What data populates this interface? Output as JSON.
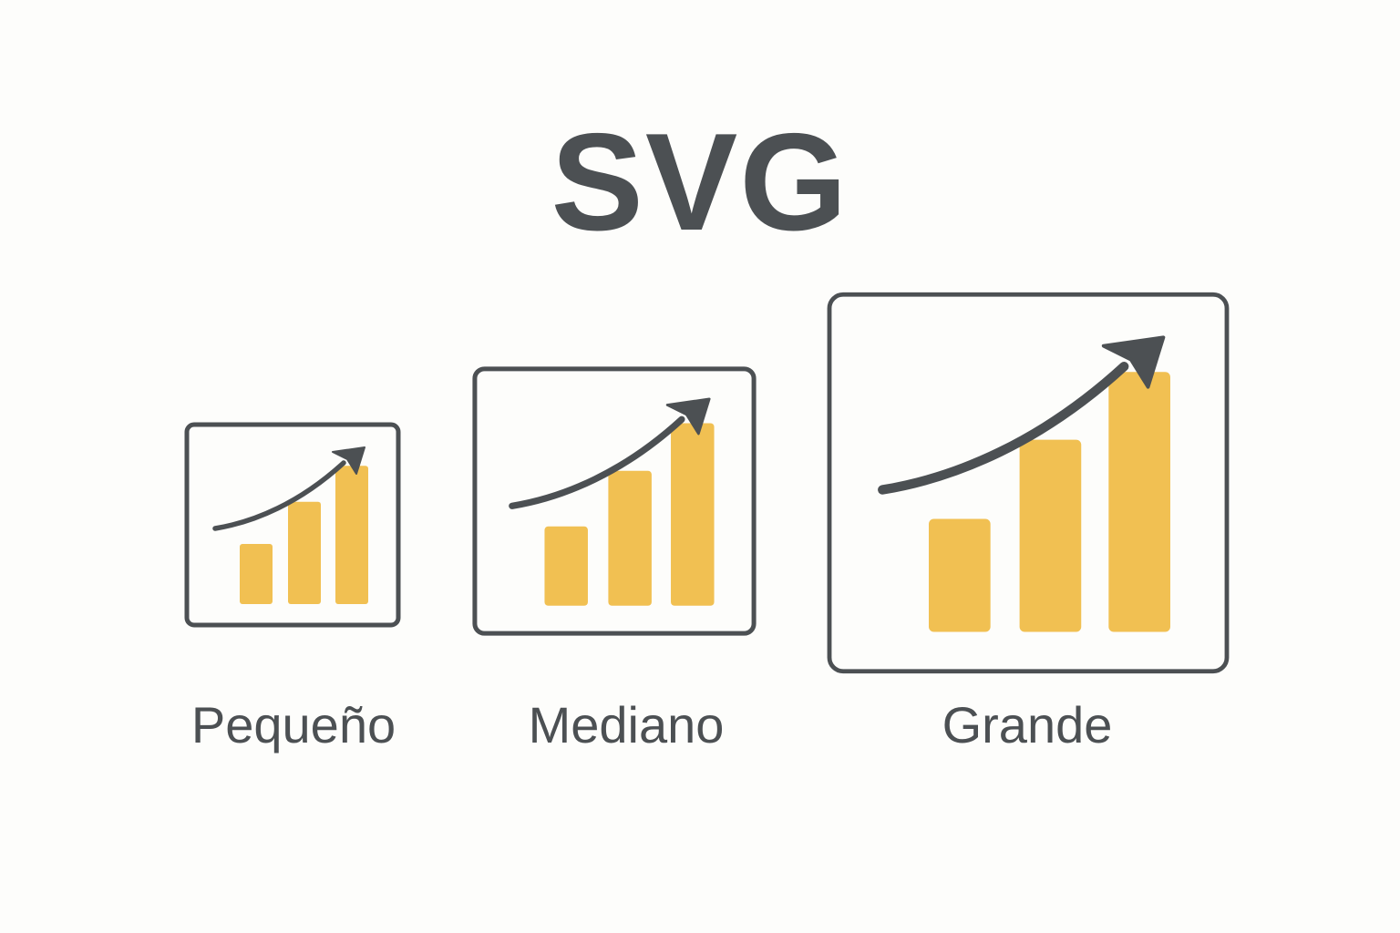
{
  "title": "SVG",
  "colors": {
    "stroke": "#4c5053",
    "bar": "#f1c052",
    "background": "#fdfdfb"
  },
  "icons": [
    {
      "label": "Pequeño",
      "icon": "bar-chart-trend-up-icon",
      "bar_levels": [
        1,
        1.7,
        2.3
      ]
    },
    {
      "label": "Mediano",
      "icon": "bar-chart-trend-up-icon",
      "bar_levels": [
        1,
        1.7,
        2.3
      ]
    },
    {
      "label": "Grande",
      "icon": "bar-chart-trend-up-icon",
      "bar_levels": [
        1,
        1.7,
        2.3
      ]
    }
  ]
}
